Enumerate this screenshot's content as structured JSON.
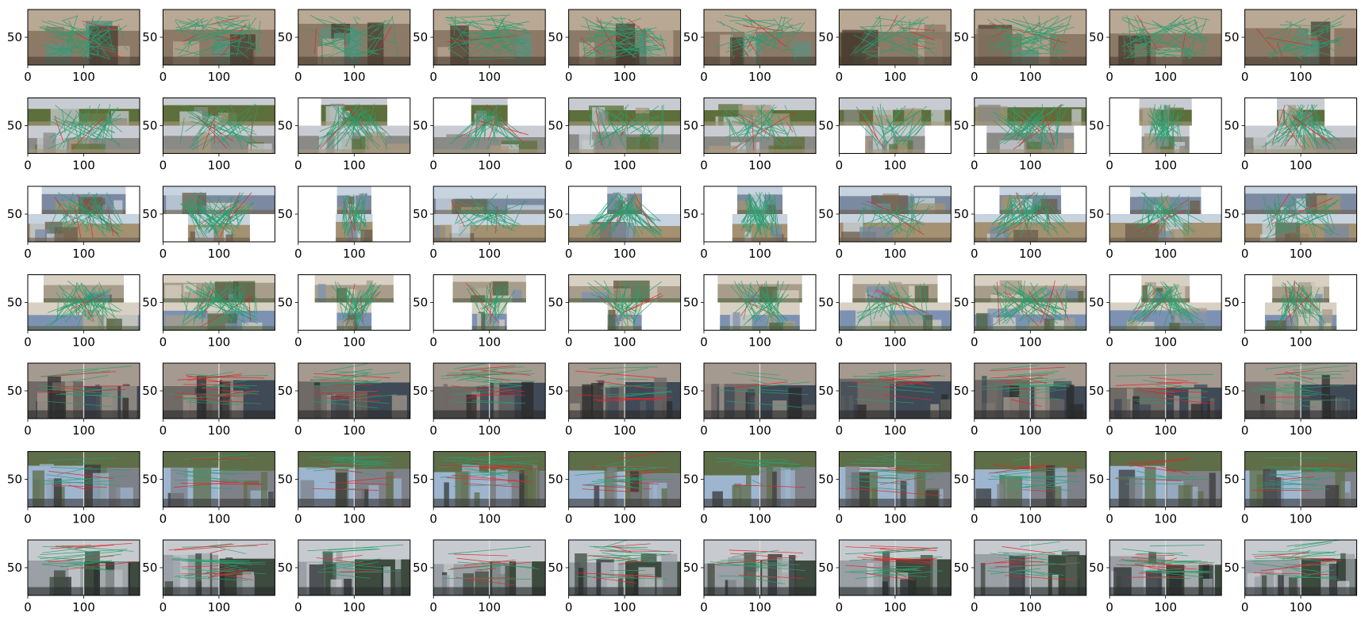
{
  "chart_data": {
    "type": "image-grid",
    "rows": 7,
    "cols": 10,
    "x_ticks": [
      0,
      100
    ],
    "y_ticks": [
      50
    ],
    "xlim": [
      0,
      200
    ],
    "ylim": [
      100,
      0
    ],
    "match_colors": {
      "inlier": "#2a9d6e",
      "outlier": "#e3242b"
    },
    "row_scenes": [
      {
        "scene": "carved stone faces with foliage",
        "layout": "single-wide",
        "palette": [
          "#8c7a66",
          "#5f8f80",
          "#b9a894",
          "#4a3c30"
        ]
      },
      {
        "scene": "neoclassical building facade, stacked pairs",
        "layout": "stacked",
        "palette": [
          "#8a8a86",
          "#5d6f3a",
          "#c8ccd2",
          "#a99a80"
        ]
      },
      {
        "scene": "city plazas and monuments, stacked pairs",
        "layout": "stacked",
        "palette": [
          "#7b8aa0",
          "#a39171",
          "#c7d3df",
          "#6b5c4b"
        ]
      },
      {
        "scene": "cathedral facades, stacked pairs",
        "layout": "stacked",
        "palette": [
          "#7d92b3",
          "#a89d8a",
          "#d8d0c2",
          "#4f5f3e"
        ]
      },
      {
        "scene": "street scenes, side-by-side pairs",
        "layout": "side-by-side",
        "palette": [
          "#6f6a66",
          "#3f4a56",
          "#a59a8f",
          "#2b2b2b"
        ]
      },
      {
        "scene": "intersections and crosswalks, side-by-side pairs",
        "layout": "side-by-side",
        "palette": [
          "#7f8188",
          "#9db5cf",
          "#5e6e48",
          "#3a3a3a"
        ]
      },
      {
        "scene": "urban towers under cloudy sky, side-by-side pairs",
        "layout": "side-by-side",
        "palette": [
          "#9aa0a6",
          "#3d4a3e",
          "#c7cbcf",
          "#2a2d2f"
        ]
      }
    ]
  }
}
